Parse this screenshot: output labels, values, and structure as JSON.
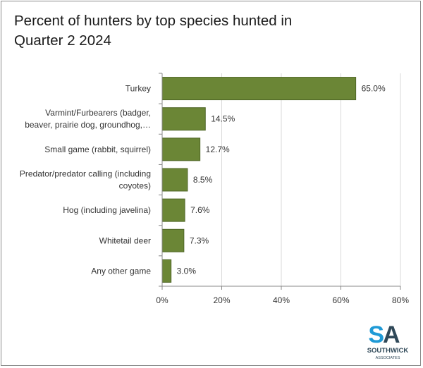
{
  "chart_data": {
    "type": "bar",
    "orientation": "horizontal",
    "title": "Percent of hunters by top species hunted in Quarter 2 2024",
    "categories": [
      "Turkey",
      "Varmint/Furbearers (badger, beaver, prairie dog, groundhog,…",
      "Small game (rabbit, squirrel)",
      "Predator/predator calling (including coyotes)",
      "Hog (including javelina)",
      "Whitetail deer",
      "Any other game"
    ],
    "category_lines": [
      [
        "Turkey"
      ],
      [
        "Varmint/Furbearers (badger,",
        "beaver, prairie dog, groundhog,…"
      ],
      [
        "Small game (rabbit, squirrel)"
      ],
      [
        "Predator/predator calling (including",
        "coyotes)"
      ],
      [
        "Hog (including javelina)"
      ],
      [
        "Whitetail deer"
      ],
      [
        "Any other game"
      ]
    ],
    "values": [
      65.0,
      14.5,
      12.7,
      8.5,
      7.6,
      7.3,
      3.0
    ],
    "data_labels": [
      "65.0%",
      "14.5%",
      "12.7%",
      "8.5%",
      "7.6%",
      "7.3%",
      "3.0%"
    ],
    "xlim": [
      0,
      80
    ],
    "x_ticks": [
      0,
      20,
      40,
      60,
      80
    ],
    "x_tick_labels": [
      "0%",
      "20%",
      "40%",
      "60%",
      "80%"
    ],
    "grid": true,
    "bar_color": "#6b8636",
    "bar_edge_color": "#4f6626"
  },
  "logo": {
    "initials": "SA",
    "name": "SOUTHWICK",
    "subname": "ASSOCIATES",
    "color_s": "#1f9ad6",
    "color_a": "#2f4858"
  }
}
